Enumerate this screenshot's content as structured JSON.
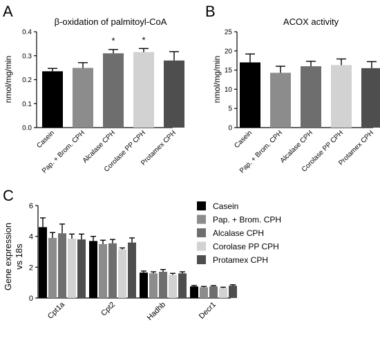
{
  "panel_labels": [
    "A",
    "B",
    "C"
  ],
  "chart_data": [
    {
      "type": "bar",
      "panel": "A",
      "title": "β-oxidation of palmitoyl-CoA",
      "ylabel": "nmol/mg/min",
      "xlabel": "",
      "ylim": [
        0,
        0.4
      ],
      "yticks": [
        "0.0",
        "0.1",
        "0.2",
        "0.3",
        "0.4"
      ],
      "categories": [
        "Casein",
        "Pap. + Brom. CPH",
        "Alcalase CPH",
        "Corolase PP CPH",
        "Protamex CPH"
      ],
      "values": [
        0.235,
        0.249,
        0.31,
        0.315,
        0.28
      ],
      "errors": [
        0.012,
        0.022,
        0.016,
        0.015,
        0.037
      ],
      "colors": [
        "#000000",
        "#8c8c8c",
        "#6e6e6e",
        "#d2d2d2",
        "#4e4e4e"
      ],
      "annotations": [
        "",
        "",
        "*",
        "*",
        ""
      ],
      "grid": false
    },
    {
      "type": "bar",
      "panel": "B",
      "title": "ACOX activity",
      "ylabel": "nmol/mg/min",
      "xlabel": "",
      "ylim": [
        0,
        25
      ],
      "yticks": [
        "0",
        "5",
        "10",
        "15",
        "20",
        "25"
      ],
      "categories": [
        "Casein",
        "Pap. + Brom. CPH",
        "Alcalase CPH",
        "Corolase PP CPH",
        "Protamex CPH"
      ],
      "values": [
        17.0,
        14.3,
        16.0,
        16.3,
        15.5
      ],
      "errors": [
        2.2,
        1.7,
        1.3,
        1.6,
        1.7
      ],
      "colors": [
        "#000000",
        "#8c8c8c",
        "#6e6e6e",
        "#d2d2d2",
        "#4e4e4e"
      ],
      "grid": false
    },
    {
      "type": "bar",
      "panel": "C",
      "title": "",
      "ylabel": "Gene expression vs 18s",
      "ylabel_lines": [
        "Gene expression",
        "vs 18s"
      ],
      "xlabel": "",
      "ylim": [
        0,
        6
      ],
      "yticks": [
        "0",
        "2",
        "4",
        "6"
      ],
      "categories": [
        "Cpt1a",
        "Cpt2",
        "Hadhb",
        "Decr1"
      ],
      "series": [
        {
          "name": "Casein",
          "color": "#000000",
          "values": [
            4.6,
            3.7,
            1.65,
            0.75
          ],
          "errors": [
            0.6,
            0.3,
            0.1,
            0.06
          ]
        },
        {
          "name": "Pap. + Brom. CPH",
          "color": "#8c8c8c",
          "values": [
            3.9,
            3.5,
            1.6,
            0.7
          ],
          "errors": [
            0.35,
            0.25,
            0.1,
            0.05
          ]
        },
        {
          "name": "Alcalase CPH",
          "color": "#6e6e6e",
          "values": [
            4.2,
            3.55,
            1.7,
            0.75
          ],
          "errors": [
            0.6,
            0.25,
            0.15,
            0.05
          ]
        },
        {
          "name": "Corolase PP CPH",
          "color": "#d2d2d2",
          "values": [
            3.85,
            3.15,
            1.5,
            0.65
          ],
          "errors": [
            0.3,
            0.1,
            0.1,
            0.05
          ]
        },
        {
          "name": "Protamex CPH",
          "color": "#4e4e4e",
          "values": [
            3.8,
            3.6,
            1.6,
            0.8
          ],
          "errors": [
            0.35,
            0.3,
            0.1,
            0.06
          ]
        }
      ],
      "legend_position": "right",
      "grid": false
    }
  ]
}
